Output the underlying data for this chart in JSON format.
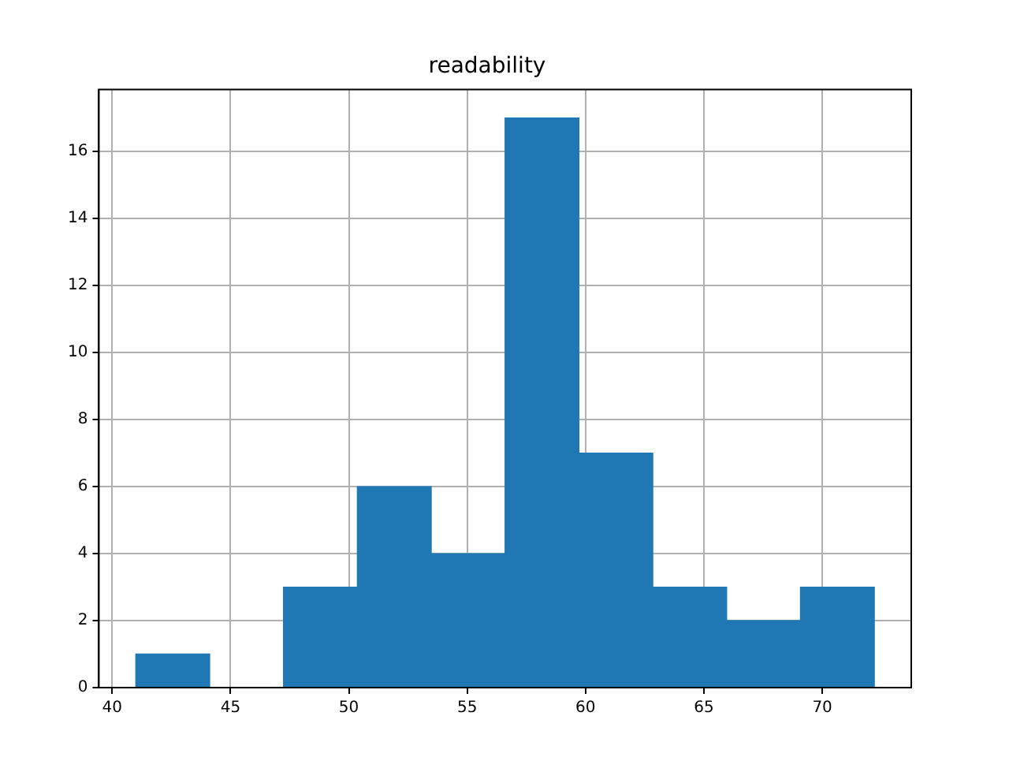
{
  "chart_data": {
    "type": "histogram",
    "title": "readability",
    "bins": [
      41,
      44.12,
      47.24,
      50.36,
      53.48,
      56.6,
      59.72,
      62.84,
      65.96,
      69.08,
      72.2
    ],
    "values": [
      1,
      0,
      3,
      6,
      4,
      17,
      7,
      3,
      2,
      3
    ],
    "color": "#1f77b4",
    "xlim": [
      39.44,
      73.76
    ],
    "xticks": [
      40,
      45,
      50,
      55,
      60,
      65,
      70
    ],
    "ylim": [
      0,
      17.85
    ],
    "yticks": [
      0,
      2,
      4,
      6,
      8,
      10,
      12,
      14,
      16
    ],
    "grid": true
  }
}
